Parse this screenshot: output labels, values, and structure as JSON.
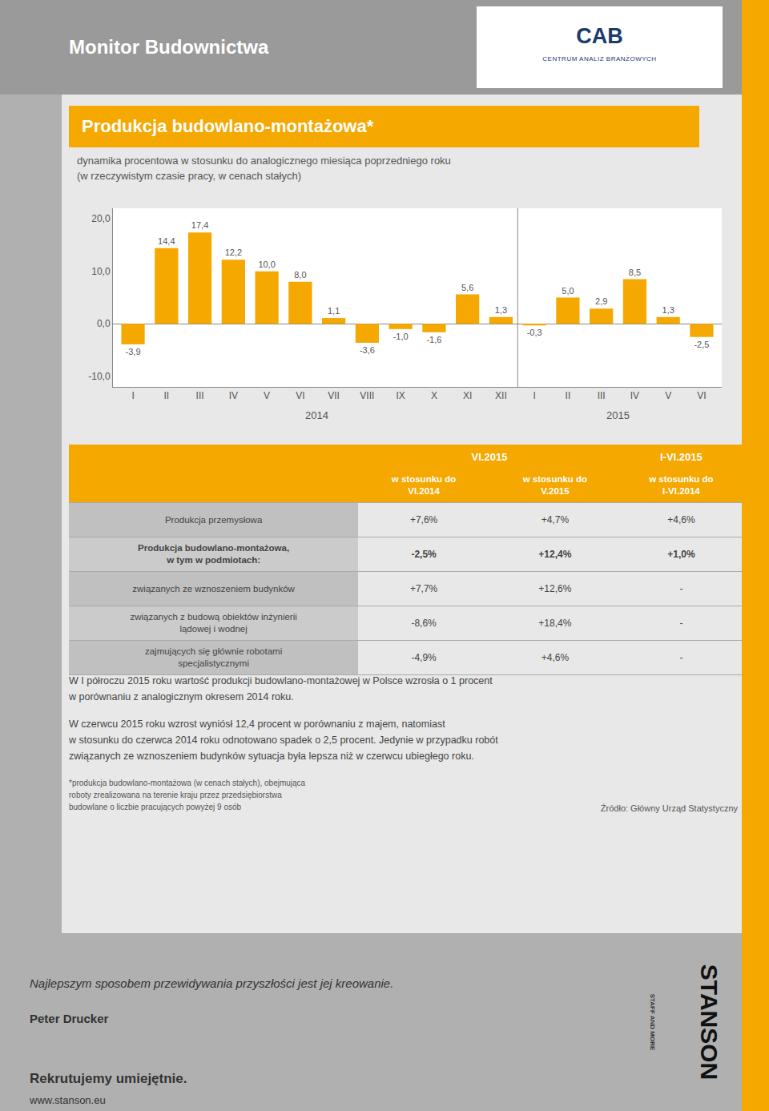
{
  "chart_data": {
    "type": "bar",
    "header_title": "Monitor Budownictwa",
    "logo": [
      "CAB",
      "CENTRUM ANALIZ BRANŻOWYCH"
    ],
    "title": "Produkcja budowlano-montażowa*",
    "subtitle": [
      "dynamika procentowa w stosunku do analogicznego miesiąca poprzedniego roku",
      "(w rzeczywistym czasie pracy, w cenach stałych)"
    ],
    "categories": [
      "I",
      "II",
      "III",
      "IV",
      "V",
      "VI",
      "VII",
      "VIII",
      "IX",
      "X",
      "XI",
      "XII",
      "I",
      "II",
      "III",
      "IV",
      "V",
      "VI"
    ],
    "values": [
      -3.9,
      14.4,
      17.4,
      12.2,
      10.0,
      8.0,
      1.1,
      -3.6,
      -1.0,
      -1.6,
      5.6,
      1.3,
      -0.3,
      5.0,
      2.9,
      8.5,
      1.3,
      -2.5
    ],
    "value_labels": [
      "-3,9",
      "14,4",
      "17,4",
      "12,2",
      "10,0",
      "8,0",
      "1,1",
      "-3,6",
      "-1,0",
      "-1,6",
      "5,6",
      "1,3",
      "-0,3",
      "5,0",
      "2,9",
      "8,5",
      "1,3",
      "-2,5"
    ],
    "data_labels": true,
    "color": "#F5A800",
    "ylim": [
      -12.0,
      22.0
    ],
    "yticks": [
      {
        "value": -10,
        "label": "-10,0"
      },
      {
        "value": 0,
        "label": "0,0"
      },
      {
        "value": 10,
        "label": "10,0"
      },
      {
        "value": 20,
        "label": "20,0"
      }
    ],
    "grid": false,
    "annotations": [
      {
        "text": "2014",
        "span": [
          0,
          11
        ]
      },
      {
        "text": "2015",
        "span": [
          12,
          17
        ]
      }
    ],
    "table": {
      "columns": [
        {
          "title": "VI.2015",
          "subs": [
            [
              "w stosunku do",
              "VI.2014"
            ],
            [
              "w stosunku do",
              "V.2015"
            ]
          ]
        },
        {
          "title": "I-VI.2015",
          "subs": [
            [
              "w stosunku do",
              "I-VI.2014"
            ]
          ]
        }
      ],
      "rows": [
        {
          "label": "Produkcja przemysłowa",
          "values": [
            "+7,6%",
            "+4,7%",
            "+4,6%"
          ],
          "bold": false
        },
        {
          "label": "Produkcja budowlano-montażowa,\nw tym w podmiotach:",
          "values": [
            "-2,5%",
            "+12,4%",
            "+1,0%"
          ],
          "bold": true
        },
        {
          "label": "związanych ze wznoszeniem budynków",
          "values": [
            "+7,7%",
            "+12,6%",
            "-"
          ],
          "bold": false
        },
        {
          "label": "związanych z budową obiektów inżynierii\nlądowej i wodnej",
          "values": [
            "-8,6%",
            "+18,4%",
            "-"
          ],
          "bold": false
        },
        {
          "label": "zajmujących się głównie robotami\nspecjalistycznymi",
          "values": [
            "-4,9%",
            "+4,6%",
            "-"
          ],
          "bold": false
        }
      ]
    },
    "paragraphs": [
      "W I półroczu 2015 roku wartość produkcji budowlano-montażowej w Polsce wzrosła o 1 procent\nw porównaniu z analogicznym okresem 2014 roku.",
      "W czerwcu 2015 roku wzrost wyniósł 12,4 procent w porównaniu z majem, natomiast\nw stosunku do czerwca 2014 roku odnotowano spadek o 2,5 procent. Jedynie w przypadku robót\nzwiązanych ze wznoszeniem budynków sytuacja była lepsza niż w czerwcu ubiegłego roku."
    ],
    "footnotes": [
      "*produkcja budowlano-montażowa (w cenach stałych), obejmująca",
      "roboty zrealizowana na terenie kraju przez przedsiębiorstwa",
      "budowlane o liczbie pracujących powyżej 9 osób"
    ],
    "source": "Źródło: Główny Urząd Statystyczny",
    "quote": "Najlepszym sposobem przewidywania przyszłości jest jej kreowanie.",
    "quote_author": "Peter Drucker",
    "recruit": "Rekrutujemy umiejętnie.",
    "url": "www.stanson.eu",
    "brand": "STANSON",
    "brand_tagline": "STAFF AND MORE"
  }
}
